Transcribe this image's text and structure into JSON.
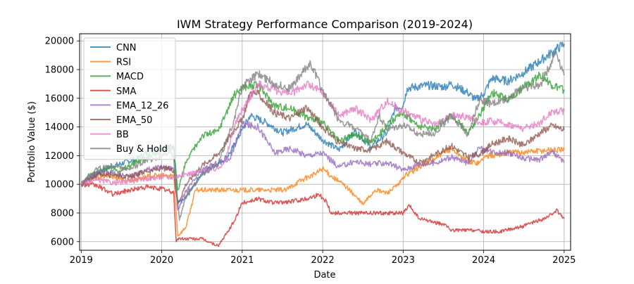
{
  "chart_data": {
    "type": "line",
    "title": "IWM Strategy Performance Comparison (2019-2024)",
    "xlabel": "Date",
    "ylabel": "Portfolio Value ($)",
    "xlim": [
      2018.98,
      2025.08
    ],
    "ylim": [
      5400,
      20500
    ],
    "xticks": [
      2019,
      2020,
      2021,
      2022,
      2023,
      2024,
      2025
    ],
    "xtick_labels": [
      "2019",
      "2020",
      "2021",
      "2022",
      "2023",
      "2024",
      "2025"
    ],
    "yticks": [
      6000,
      8000,
      10000,
      12000,
      14000,
      16000,
      18000,
      20000
    ],
    "ytick_labels": [
      "6000",
      "8000",
      "10000",
      "12000",
      "14000",
      "16000",
      "18000",
      "20000"
    ],
    "grid": true,
    "legend_position": "top-left",
    "series": [
      {
        "name": "CNN",
        "color": "#1f77b4",
        "points": [
          [
            2019.0,
            10000
          ],
          [
            2019.3,
            11100
          ],
          [
            2019.7,
            11800
          ],
          [
            2019.9,
            12500
          ],
          [
            2020.15,
            12600
          ],
          [
            2020.2,
            8700
          ],
          [
            2020.3,
            9000
          ],
          [
            2020.5,
            10800
          ],
          [
            2020.75,
            11600
          ],
          [
            2020.85,
            12200
          ],
          [
            2021.0,
            13800
          ],
          [
            2021.1,
            14800
          ],
          [
            2021.3,
            14300
          ],
          [
            2021.5,
            13600
          ],
          [
            2021.8,
            14200
          ],
          [
            2022.0,
            13100
          ],
          [
            2022.2,
            12400
          ],
          [
            2022.4,
            13700
          ],
          [
            2022.6,
            12600
          ],
          [
            2022.8,
            13600
          ],
          [
            2022.9,
            15300
          ],
          [
            2023.0,
            15500
          ],
          [
            2023.05,
            16700
          ],
          [
            2023.3,
            16900
          ],
          [
            2023.5,
            16800
          ],
          [
            2023.6,
            17000
          ],
          [
            2023.8,
            16400
          ],
          [
            2023.9,
            15900
          ],
          [
            2024.0,
            16300
          ],
          [
            2024.1,
            17400
          ],
          [
            2024.3,
            17200
          ],
          [
            2024.5,
            17800
          ],
          [
            2024.7,
            18600
          ],
          [
            2024.85,
            19200
          ],
          [
            2025.0,
            19800
          ]
        ]
      },
      {
        "name": "RSI",
        "color": "#ff7f0e",
        "points": [
          [
            2019.0,
            10000
          ],
          [
            2019.1,
            10300
          ],
          [
            2019.3,
            10600
          ],
          [
            2019.6,
            10300
          ],
          [
            2019.9,
            10600
          ],
          [
            2020.15,
            10600
          ],
          [
            2020.2,
            6400
          ],
          [
            2020.3,
            7000
          ],
          [
            2020.42,
            9600
          ],
          [
            2020.6,
            9600
          ],
          [
            2021.0,
            9600
          ],
          [
            2021.3,
            9600
          ],
          [
            2021.55,
            9600
          ],
          [
            2021.7,
            10200
          ],
          [
            2021.9,
            10700
          ],
          [
            2022.0,
            11100
          ],
          [
            2022.1,
            10600
          ],
          [
            2022.3,
            9800
          ],
          [
            2022.5,
            8600
          ],
          [
            2022.65,
            9600
          ],
          [
            2022.8,
            9400
          ],
          [
            2022.95,
            10000
          ],
          [
            2023.0,
            10500
          ],
          [
            2023.2,
            11200
          ],
          [
            2023.4,
            11800
          ],
          [
            2023.6,
            12500
          ],
          [
            2023.8,
            11600
          ],
          [
            2023.95,
            11500
          ],
          [
            2024.0,
            11900
          ],
          [
            2024.3,
            12200
          ],
          [
            2024.6,
            12300
          ],
          [
            2024.8,
            12400
          ],
          [
            2025.0,
            12400
          ]
        ]
      },
      {
        "name": "MACD",
        "color": "#2ca02c",
        "points": [
          [
            2019.0,
            10000
          ],
          [
            2019.1,
            10600
          ],
          [
            2019.3,
            11100
          ],
          [
            2019.5,
            11000
          ],
          [
            2019.7,
            11600
          ],
          [
            2019.9,
            12100
          ],
          [
            2020.1,
            12600
          ],
          [
            2020.15,
            12500
          ],
          [
            2020.2,
            9600
          ],
          [
            2020.3,
            11500
          ],
          [
            2020.5,
            13400
          ],
          [
            2020.7,
            13700
          ],
          [
            2020.8,
            15000
          ],
          [
            2020.9,
            16200
          ],
          [
            2021.0,
            16800
          ],
          [
            2021.2,
            16900
          ],
          [
            2021.4,
            15500
          ],
          [
            2021.6,
            15300
          ],
          [
            2021.8,
            14700
          ],
          [
            2022.0,
            14300
          ],
          [
            2022.2,
            13000
          ],
          [
            2022.4,
            13500
          ],
          [
            2022.6,
            12900
          ],
          [
            2022.8,
            14100
          ],
          [
            2023.0,
            15000
          ],
          [
            2023.2,
            14000
          ],
          [
            2023.4,
            13900
          ],
          [
            2023.6,
            14900
          ],
          [
            2023.8,
            13600
          ],
          [
            2023.95,
            14800
          ],
          [
            2024.1,
            16400
          ],
          [
            2024.3,
            15900
          ],
          [
            2024.5,
            16800
          ],
          [
            2024.7,
            17700
          ],
          [
            2024.85,
            16900
          ],
          [
            2025.0,
            16600
          ]
        ]
      },
      {
        "name": "SMA",
        "color": "#d62728",
        "points": [
          [
            2019.0,
            10000
          ],
          [
            2019.2,
            9900
          ],
          [
            2019.4,
            9300
          ],
          [
            2019.6,
            9600
          ],
          [
            2019.8,
            9800
          ],
          [
            2020.0,
            9700
          ],
          [
            2020.15,
            9400
          ],
          [
            2020.18,
            6000
          ],
          [
            2020.2,
            6200
          ],
          [
            2020.5,
            6200
          ],
          [
            2020.7,
            5700
          ],
          [
            2020.8,
            6500
          ],
          [
            2020.9,
            7400
          ],
          [
            2021.0,
            8700
          ],
          [
            2021.2,
            9000
          ],
          [
            2021.4,
            8700
          ],
          [
            2021.6,
            8800
          ],
          [
            2021.8,
            9000
          ],
          [
            2021.95,
            9300
          ],
          [
            2022.05,
            8800
          ],
          [
            2022.1,
            8000
          ],
          [
            2022.5,
            8000
          ],
          [
            2022.8,
            8000
          ],
          [
            2023.0,
            8000
          ],
          [
            2023.08,
            8500
          ],
          [
            2023.2,
            7600
          ],
          [
            2023.5,
            7200
          ],
          [
            2023.6,
            6800
          ],
          [
            2023.9,
            6800
          ],
          [
            2024.0,
            6700
          ],
          [
            2024.2,
            6700
          ],
          [
            2024.5,
            7100
          ],
          [
            2024.8,
            7700
          ],
          [
            2024.9,
            8200
          ],
          [
            2025.0,
            7600
          ]
        ]
      },
      {
        "name": "EMA_12_26",
        "color": "#9467bd",
        "points": [
          [
            2019.0,
            10000
          ],
          [
            2019.2,
            10900
          ],
          [
            2019.4,
            10800
          ],
          [
            2019.6,
            10500
          ],
          [
            2019.8,
            11000
          ],
          [
            2020.0,
            11200
          ],
          [
            2020.15,
            11100
          ],
          [
            2020.2,
            8200
          ],
          [
            2020.3,
            9500
          ],
          [
            2020.5,
            11000
          ],
          [
            2020.7,
            11500
          ],
          [
            2020.85,
            11800
          ],
          [
            2021.0,
            14200
          ],
          [
            2021.2,
            14000
          ],
          [
            2021.4,
            12200
          ],
          [
            2021.6,
            12500
          ],
          [
            2021.8,
            12000
          ],
          [
            2022.0,
            12200
          ],
          [
            2022.2,
            11200
          ],
          [
            2022.4,
            11600
          ],
          [
            2022.6,
            11400
          ],
          [
            2022.8,
            11500
          ],
          [
            2023.0,
            11000
          ],
          [
            2023.2,
            11400
          ],
          [
            2023.4,
            11500
          ],
          [
            2023.6,
            11900
          ],
          [
            2023.8,
            11500
          ],
          [
            2023.95,
            12500
          ],
          [
            2024.1,
            12300
          ],
          [
            2024.3,
            12200
          ],
          [
            2024.5,
            11800
          ],
          [
            2024.7,
            11700
          ],
          [
            2024.85,
            12300
          ],
          [
            2025.0,
            11500
          ]
        ]
      },
      {
        "name": "EMA_50",
        "color": "#8c564b",
        "points": [
          [
            2019.0,
            10000
          ],
          [
            2019.2,
            10700
          ],
          [
            2019.4,
            10700
          ],
          [
            2019.6,
            10500
          ],
          [
            2019.8,
            10900
          ],
          [
            2020.0,
            11100
          ],
          [
            2020.15,
            11000
          ],
          [
            2020.2,
            8600
          ],
          [
            2020.3,
            10000
          ],
          [
            2020.5,
            11300
          ],
          [
            2020.7,
            12100
          ],
          [
            2020.9,
            13800
          ],
          [
            2021.0,
            14500
          ],
          [
            2021.1,
            16400
          ],
          [
            2021.2,
            16300
          ],
          [
            2021.4,
            15000
          ],
          [
            2021.6,
            14600
          ],
          [
            2021.8,
            15400
          ],
          [
            2022.0,
            14000
          ],
          [
            2022.2,
            12900
          ],
          [
            2022.4,
            12500
          ],
          [
            2022.6,
            12400
          ],
          [
            2022.8,
            13000
          ],
          [
            2023.0,
            12200
          ],
          [
            2023.2,
            11500
          ],
          [
            2023.4,
            12100
          ],
          [
            2023.6,
            12700
          ],
          [
            2023.8,
            11900
          ],
          [
            2023.95,
            12100
          ],
          [
            2024.1,
            12800
          ],
          [
            2024.3,
            13200
          ],
          [
            2024.5,
            12700
          ],
          [
            2024.7,
            13600
          ],
          [
            2024.85,
            14100
          ],
          [
            2025.0,
            13800
          ]
        ]
      },
      {
        "name": "BB",
        "color": "#e377c2",
        "points": [
          [
            2019.0,
            10000
          ],
          [
            2019.2,
            10300
          ],
          [
            2019.4,
            10100
          ],
          [
            2019.6,
            10200
          ],
          [
            2019.8,
            10400
          ],
          [
            2020.0,
            10500
          ],
          [
            2020.15,
            10500
          ],
          [
            2020.3,
            10700
          ],
          [
            2020.5,
            10900
          ],
          [
            2020.7,
            11100
          ],
          [
            2020.8,
            11800
          ],
          [
            2020.9,
            14000
          ],
          [
            2021.0,
            15200
          ],
          [
            2021.2,
            17000
          ],
          [
            2021.4,
            16600
          ],
          [
            2021.6,
            16300
          ],
          [
            2021.8,
            17000
          ],
          [
            2022.0,
            16400
          ],
          [
            2022.2,
            14800
          ],
          [
            2022.4,
            15300
          ],
          [
            2022.6,
            14500
          ],
          [
            2022.8,
            15800
          ],
          [
            2023.0,
            15100
          ],
          [
            2023.2,
            14600
          ],
          [
            2023.4,
            14100
          ],
          [
            2023.6,
            14800
          ],
          [
            2023.8,
            14700
          ],
          [
            2023.95,
            14300
          ],
          [
            2024.1,
            14400
          ],
          [
            2024.3,
            14200
          ],
          [
            2024.5,
            13900
          ],
          [
            2024.7,
            14300
          ],
          [
            2024.85,
            15100
          ],
          [
            2025.0,
            15100
          ]
        ]
      },
      {
        "name": "Buy & Hold",
        "color": "#7f7f7f",
        "points": [
          [
            2019.0,
            10000
          ],
          [
            2019.2,
            11100
          ],
          [
            2019.4,
            11300
          ],
          [
            2019.6,
            11000
          ],
          [
            2019.8,
            11700
          ],
          [
            2020.0,
            11900
          ],
          [
            2020.1,
            12400
          ],
          [
            2020.15,
            11700
          ],
          [
            2020.22,
            7500
          ],
          [
            2020.3,
            9200
          ],
          [
            2020.5,
            10700
          ],
          [
            2020.7,
            11400
          ],
          [
            2020.9,
            14500
          ],
          [
            2021.0,
            16800
          ],
          [
            2021.2,
            17700
          ],
          [
            2021.4,
            17000
          ],
          [
            2021.6,
            16700
          ],
          [
            2021.85,
            18500
          ],
          [
            2022.0,
            16500
          ],
          [
            2022.2,
            14500
          ],
          [
            2022.4,
            13900
          ],
          [
            2022.6,
            13000
          ],
          [
            2022.7,
            14800
          ],
          [
            2022.8,
            13800
          ],
          [
            2023.0,
            14100
          ],
          [
            2023.2,
            13500
          ],
          [
            2023.4,
            13600
          ],
          [
            2023.6,
            14800
          ],
          [
            2023.8,
            13500
          ],
          [
            2023.95,
            15900
          ],
          [
            2024.1,
            15600
          ],
          [
            2024.3,
            16000
          ],
          [
            2024.5,
            16800
          ],
          [
            2024.7,
            16900
          ],
          [
            2024.8,
            18000
          ],
          [
            2024.9,
            19300
          ],
          [
            2025.0,
            17600
          ]
        ]
      }
    ]
  }
}
